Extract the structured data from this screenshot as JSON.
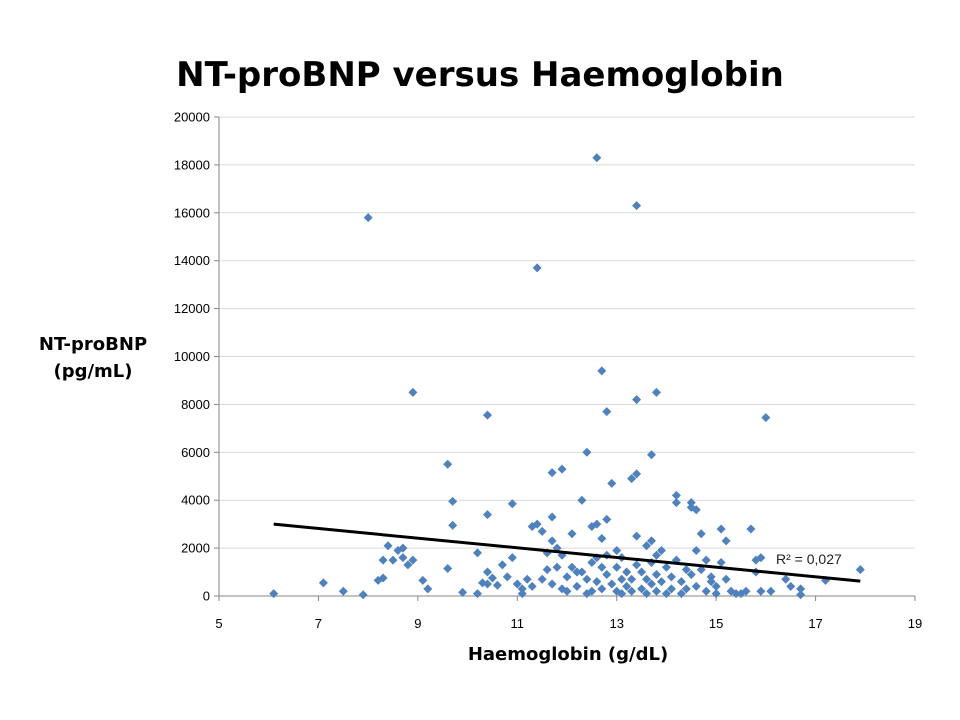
{
  "chart_data": {
    "type": "scatter",
    "title": "NT-proBNP versus Haemoglobin",
    "xlabel": "Haemoglobin (g/dL)",
    "ylabel_lines": [
      "NT-proBNP",
      "(pg/mL)"
    ],
    "xlim": [
      5,
      19
    ],
    "ylim": [
      0,
      20000
    ],
    "xticks": [
      5,
      7,
      9,
      11,
      13,
      15,
      17,
      19
    ],
    "yticks": [
      0,
      2000,
      4000,
      6000,
      8000,
      10000,
      12000,
      14000,
      16000,
      18000,
      20000
    ],
    "grid": "horizontal",
    "marker": "diamond",
    "colors": {
      "points": "#4F81BD",
      "trendline": "#000000",
      "grid": "#D9D9D9",
      "axis": "#868686"
    },
    "trendline": {
      "type": "linear",
      "x": [
        6.1,
        17.9
      ],
      "y": [
        3000,
        620
      ]
    },
    "annotation": "R² = 0,027",
    "points": [
      [
        6.1,
        100
      ],
      [
        7.1,
        550
      ],
      [
        7.5,
        200
      ],
      [
        7.9,
        50
      ],
      [
        8.0,
        15800
      ],
      [
        8.2,
        650
      ],
      [
        8.3,
        750
      ],
      [
        8.3,
        1500
      ],
      [
        8.4,
        2100
      ],
      [
        8.5,
        1500
      ],
      [
        8.6,
        1900
      ],
      [
        8.7,
        2000
      ],
      [
        8.7,
        1600
      ],
      [
        8.8,
        1300
      ],
      [
        8.9,
        1500
      ],
      [
        8.9,
        8500
      ],
      [
        9.1,
        650
      ],
      [
        9.2,
        300
      ],
      [
        9.6,
        5500
      ],
      [
        9.6,
        1150
      ],
      [
        9.7,
        3950
      ],
      [
        9.7,
        2950
      ],
      [
        9.9,
        150
      ],
      [
        10.2,
        1800
      ],
      [
        10.2,
        100
      ],
      [
        10.3,
        550
      ],
      [
        10.4,
        7550
      ],
      [
        10.4,
        3400
      ],
      [
        10.4,
        1000
      ],
      [
        10.4,
        500
      ],
      [
        10.5,
        750
      ],
      [
        10.6,
        450
      ],
      [
        10.7,
        1300
      ],
      [
        10.8,
        800
      ],
      [
        10.9,
        1600
      ],
      [
        10.9,
        3850
      ],
      [
        11.0,
        500
      ],
      [
        11.1,
        100
      ],
      [
        11.1,
        300
      ],
      [
        11.2,
        700
      ],
      [
        11.3,
        400
      ],
      [
        11.3,
        2900
      ],
      [
        11.4,
        13700
      ],
      [
        11.4,
        3000
      ],
      [
        11.5,
        2700
      ],
      [
        11.5,
        700
      ],
      [
        11.6,
        1100
      ],
      [
        11.6,
        1800
      ],
      [
        11.7,
        5150
      ],
      [
        11.7,
        3300
      ],
      [
        11.7,
        2300
      ],
      [
        11.7,
        500
      ],
      [
        11.8,
        1200
      ],
      [
        11.8,
        2000
      ],
      [
        11.9,
        5300
      ],
      [
        11.9,
        1700
      ],
      [
        11.9,
        300
      ],
      [
        12.0,
        800
      ],
      [
        12.0,
        200
      ],
      [
        12.1,
        2600
      ],
      [
        12.1,
        1200
      ],
      [
        12.2,
        1000
      ],
      [
        12.2,
        400
      ],
      [
        12.3,
        4000
      ],
      [
        12.3,
        1000
      ],
      [
        12.4,
        6000
      ],
      [
        12.4,
        100
      ],
      [
        12.4,
        700
      ],
      [
        12.5,
        2900
      ],
      [
        12.5,
        1400
      ],
      [
        12.5,
        200
      ],
      [
        12.6,
        18300
      ],
      [
        12.6,
        3000
      ],
      [
        12.6,
        1600
      ],
      [
        12.6,
        600
      ],
      [
        12.7,
        9400
      ],
      [
        12.7,
        2400
      ],
      [
        12.7,
        1200
      ],
      [
        12.7,
        300
      ],
      [
        12.8,
        7700
      ],
      [
        12.8,
        3200
      ],
      [
        12.8,
        1700
      ],
      [
        12.8,
        900
      ],
      [
        12.9,
        4700
      ],
      [
        12.9,
        500
      ],
      [
        13.0,
        1900
      ],
      [
        13.0,
        1200
      ],
      [
        13.0,
        200
      ],
      [
        13.1,
        700
      ],
      [
        13.1,
        1600
      ],
      [
        13.1,
        100
      ],
      [
        13.2,
        1000
      ],
      [
        13.2,
        400
      ],
      [
        13.3,
        4900
      ],
      [
        13.3,
        700
      ],
      [
        13.3,
        200
      ],
      [
        13.4,
        16300
      ],
      [
        13.4,
        8200
      ],
      [
        13.4,
        5100
      ],
      [
        13.4,
        2500
      ],
      [
        13.4,
        1300
      ],
      [
        13.5,
        1000
      ],
      [
        13.5,
        300
      ],
      [
        13.6,
        2100
      ],
      [
        13.6,
        700
      ],
      [
        13.6,
        100
      ],
      [
        13.7,
        5900
      ],
      [
        13.7,
        2300
      ],
      [
        13.7,
        1400
      ],
      [
        13.7,
        500
      ],
      [
        13.8,
        8500
      ],
      [
        13.8,
        1700
      ],
      [
        13.8,
        900
      ],
      [
        13.8,
        200
      ],
      [
        13.9,
        1900
      ],
      [
        13.9,
        600
      ],
      [
        14.0,
        1200
      ],
      [
        14.0,
        100
      ],
      [
        14.1,
        800
      ],
      [
        14.1,
        300
      ],
      [
        14.2,
        4200
      ],
      [
        14.2,
        3900
      ],
      [
        14.2,
        1500
      ],
      [
        14.3,
        600
      ],
      [
        14.3,
        100
      ],
      [
        14.4,
        1100
      ],
      [
        14.4,
        300
      ],
      [
        14.5,
        3900
      ],
      [
        14.5,
        3700
      ],
      [
        14.5,
        900
      ],
      [
        14.6,
        3600
      ],
      [
        14.6,
        1900
      ],
      [
        14.6,
        400
      ],
      [
        14.7,
        2600
      ],
      [
        14.7,
        1100
      ],
      [
        14.8,
        1500
      ],
      [
        14.8,
        200
      ],
      [
        14.9,
        600
      ],
      [
        14.9,
        800
      ],
      [
        15.0,
        400
      ],
      [
        15.0,
        100
      ],
      [
        15.1,
        2800
      ],
      [
        15.1,
        1400
      ],
      [
        15.2,
        2300
      ],
      [
        15.2,
        700
      ],
      [
        15.3,
        200
      ],
      [
        15.4,
        100
      ],
      [
        15.5,
        100
      ],
      [
        15.6,
        200
      ],
      [
        15.7,
        2800
      ],
      [
        15.8,
        1000
      ],
      [
        15.8,
        1500
      ],
      [
        15.9,
        1600
      ],
      [
        15.9,
        200
      ],
      [
        16.0,
        7450
      ],
      [
        16.1,
        200
      ],
      [
        16.4,
        700
      ],
      [
        16.5,
        400
      ],
      [
        16.7,
        300
      ],
      [
        16.7,
        50
      ],
      [
        17.2,
        650
      ],
      [
        17.9,
        1100
      ]
    ]
  }
}
